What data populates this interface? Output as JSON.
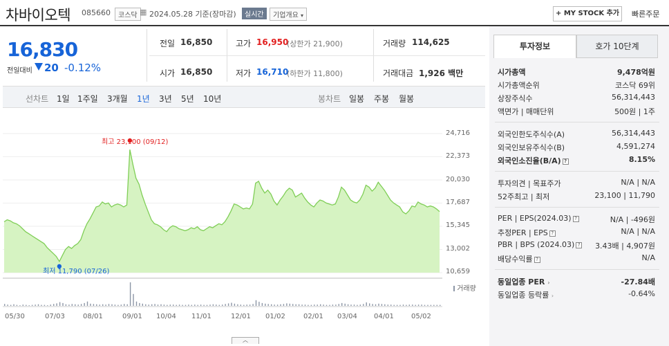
{
  "header": {
    "name": "차바이오텍",
    "code": "085660",
    "market": "코스닥",
    "date": "2024.05.28",
    "date_suffix": "기준(장마감)",
    "realtime": "실시간",
    "company_info": "기업개요",
    "my_stock": "+ MY STOCK 추가",
    "quick_order": "빠른주문"
  },
  "quote": {
    "price": "16,830",
    "change_label": "전일대비",
    "change_value": "20",
    "change_pct": "-0.12%",
    "prev_close_label": "전일",
    "prev_close": "16,850",
    "high_label": "고가",
    "high": "16,950",
    "upper_limit": "(상한가 21,900)",
    "volume_label": "거래량",
    "volume": "114,625",
    "open_label": "시가",
    "open": "16,850",
    "low_label": "저가",
    "low": "16,710",
    "lower_limit": "(하한가 11,800)",
    "amount_label": "거래대금",
    "amount": "1,926",
    "amount_unit": "백만"
  },
  "chart_tabs": {
    "line_label": "선차트",
    "line_items": [
      "1일",
      "1주일",
      "3개월",
      "1년",
      "3년",
      "5년",
      "10년"
    ],
    "selected": "1년",
    "candle_label": "봉차트",
    "candle_items": [
      "일봉",
      "주봉",
      "월봉"
    ]
  },
  "chart_data": {
    "type": "area",
    "title": "",
    "y_ticks": [
      "24,716",
      "22,373",
      "20,030",
      "17,687",
      "15,345",
      "13,002",
      "10,659"
    ],
    "ylim": [
      10659,
      24716
    ],
    "x_ticks": [
      "05/30",
      "07/03",
      "08/01",
      "09/01",
      "10/04",
      "11/01",
      "12/01",
      "01/02",
      "02/01",
      "03/04",
      "04/01",
      "05/02"
    ],
    "high_annotation": "최고 23,100 (09/12)",
    "low_annotation": "최저 11,790 (07/26)",
    "volume_label": "거래량",
    "series": [
      {
        "values": [
          15800,
          16000,
          15900,
          15700,
          15600,
          15400,
          15100,
          14800,
          14600,
          14400,
          14200,
          14000,
          13800,
          13600,
          13200,
          12900,
          12600,
          12300,
          11790,
          12400,
          13000,
          13300,
          13100,
          13400,
          13600,
          14000,
          14900,
          15600,
          16100,
          16700,
          17300,
          17400,
          17800,
          17600,
          17700,
          17300,
          17500,
          17600,
          17500,
          17300,
          17500,
          23100,
          21600,
          20200,
          19600,
          18500,
          17600,
          16800,
          16000,
          15600,
          15500,
          15300,
          15000,
          14800,
          15200,
          15400,
          15300,
          15100,
          15000,
          14900,
          15000,
          15200,
          15100,
          15300,
          15000,
          14900,
          15100,
          15300,
          15200,
          15400,
          15600,
          15500,
          15800,
          16300,
          16900,
          17600,
          17500,
          17300,
          17100,
          17200,
          17100,
          17600,
          19700,
          19900,
          19200,
          18700,
          19000,
          18600,
          17900,
          17500,
          18000,
          18400,
          18900,
          19200,
          19000,
          18300,
          18500,
          18700,
          18200,
          17800,
          17500,
          17300,
          17700,
          18000,
          17900,
          17700,
          17600,
          17500,
          17600,
          18300,
          19300,
          19000,
          18500,
          18000,
          17800,
          17700,
          18000,
          18600,
          19500,
          19300,
          18900,
          19200,
          19800,
          19400,
          19000,
          18500,
          18000,
          17700,
          17500,
          17300,
          16800,
          16600,
          16900,
          17400,
          17300,
          17800,
          17600,
          17500,
          17300,
          17400,
          17300,
          17100,
          16830
        ]
      }
    ],
    "volume": [
      6,
      4,
      3,
      5,
      3,
      2,
      4,
      3,
      2,
      3,
      4,
      5,
      3,
      3,
      2,
      4,
      6,
      8,
      12,
      9,
      5,
      4,
      6,
      5,
      4,
      6,
      9,
      14,
      7,
      6,
      5,
      4,
      5,
      4,
      6,
      5,
      4,
      3,
      4,
      6,
      5,
      75,
      38,
      14,
      9,
      7,
      5,
      4,
      5,
      6,
      4,
      5,
      4,
      3,
      4,
      4,
      3,
      4,
      3,
      3,
      4,
      3,
      4,
      3,
      4,
      3,
      3,
      4,
      5,
      4,
      3,
      4,
      6,
      8,
      10,
      7,
      5,
      4,
      3,
      4,
      4,
      6,
      18,
      13,
      9,
      7,
      6,
      5,
      4,
      4,
      5,
      6,
      8,
      7,
      6,
      5,
      5,
      4,
      4,
      3,
      3,
      4,
      4,
      5,
      4,
      3,
      3,
      4,
      4,
      6,
      9,
      7,
      5,
      4,
      4,
      3,
      4,
      6,
      11,
      8,
      6,
      5,
      7,
      6,
      5,
      4,
      4,
      3,
      3,
      3,
      4,
      3,
      4,
      4,
      3,
      4,
      4,
      3,
      3,
      3,
      3,
      3,
      3
    ]
  },
  "side_panel": {
    "tabs": [
      "투자정보",
      "호가 10단계"
    ],
    "market_cap_label": "시가총액",
    "market_cap": "9,478억원",
    "market_cap_rank_label": "시가총액순위",
    "market_cap_rank": "코스닥 69위",
    "shares_label": "상장주식수",
    "shares": "56,314,443",
    "face_label": "액면가 | 매매단위",
    "face": "500원 | 1주",
    "foreign_limit_label": "외국인한도주식수(A)",
    "foreign_limit": "56,314,443",
    "foreign_hold_label": "외국인보유주식수(B)",
    "foreign_hold": "4,591,274",
    "foreign_rate_label": "외국인소진율(B/A)",
    "foreign_rate": "8.15%",
    "opinion_label": "투자의견 | 목표주가",
    "opinion": "N/A | N/A",
    "wk52_label": "52주최고 | 최저",
    "wk52": "23,100 | 11,790",
    "per_label": "PER | EPS(2024.03)",
    "per": "N/A | -496원",
    "est_per_label": "추정PER | EPS",
    "est_per": "N/A | N/A",
    "pbr_label": "PBR | BPS (2024.03)",
    "pbr": "3.43배 | 4,907원",
    "div_label": "배당수익률",
    "div": "N/A",
    "sector_per_label": "동일업종 PER",
    "sector_per": "-27.84배",
    "sector_rate_label": "동일업종 등락률",
    "sector_rate": "-0.64%"
  }
}
